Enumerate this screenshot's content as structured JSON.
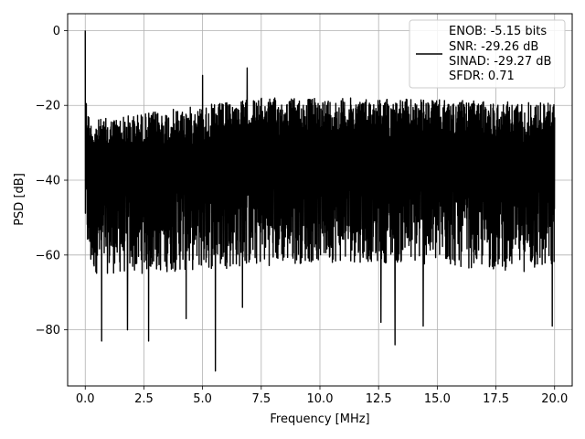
{
  "chart_data": {
    "type": "line",
    "xlabel": "Frequency [MHz]",
    "ylabel": "PSD [dB]",
    "xlim": [
      -0.75,
      20.75
    ],
    "ylim": [
      -95,
      4.5
    ],
    "xticks": [
      0.0,
      2.5,
      5.0,
      7.5,
      10.0,
      12.5,
      15.0,
      17.5,
      20.0
    ],
    "xtick_labels": [
      "0.0",
      "2.5",
      "5.0",
      "7.5",
      "10.0",
      "12.5",
      "15.0",
      "17.5",
      "20.0"
    ],
    "yticks": [
      0,
      -20,
      -40,
      -60,
      -80
    ],
    "ytick_labels": [
      "0",
      "−20",
      "−40",
      "−60",
      "−80"
    ],
    "grid": true,
    "legend_position": "top-right",
    "series_color": "#000000",
    "noise_floor_envelope": {
      "x": [
        0,
        0.2,
        2.5,
        5.0,
        7.5,
        10.0,
        12.5,
        15.0,
        17.5,
        20.0
      ],
      "upper": [
        -16,
        -24,
        -22,
        -20,
        -18,
        -18,
        -18,
        -18.5,
        -19,
        -19
      ],
      "lower": [
        -55,
        -65,
        -65,
        -64,
        -63,
        -62,
        -62,
        -63,
        -64,
        -65
      ]
    },
    "spikes": [
      {
        "x": 0.0,
        "y": 0
      },
      {
        "x": 5.0,
        "y": -12
      },
      {
        "x": 6.9,
        "y": -10
      },
      {
        "x": 0.7,
        "y": -83
      },
      {
        "x": 1.8,
        "y": -80
      },
      {
        "x": 2.7,
        "y": -83
      },
      {
        "x": 4.3,
        "y": -77
      },
      {
        "x": 5.55,
        "y": -91
      },
      {
        "x": 6.7,
        "y": -74
      },
      {
        "x": 12.6,
        "y": -78
      },
      {
        "x": 13.2,
        "y": -84
      },
      {
        "x": 14.4,
        "y": -79
      },
      {
        "x": 19.9,
        "y": -79
      }
    ],
    "legend": {
      "lines": [
        "ENOB: -5.15 bits",
        "SNR: -29.26 dB",
        "SINAD: -29.27 dB",
        "SFDR: 0.71"
      ]
    }
  }
}
